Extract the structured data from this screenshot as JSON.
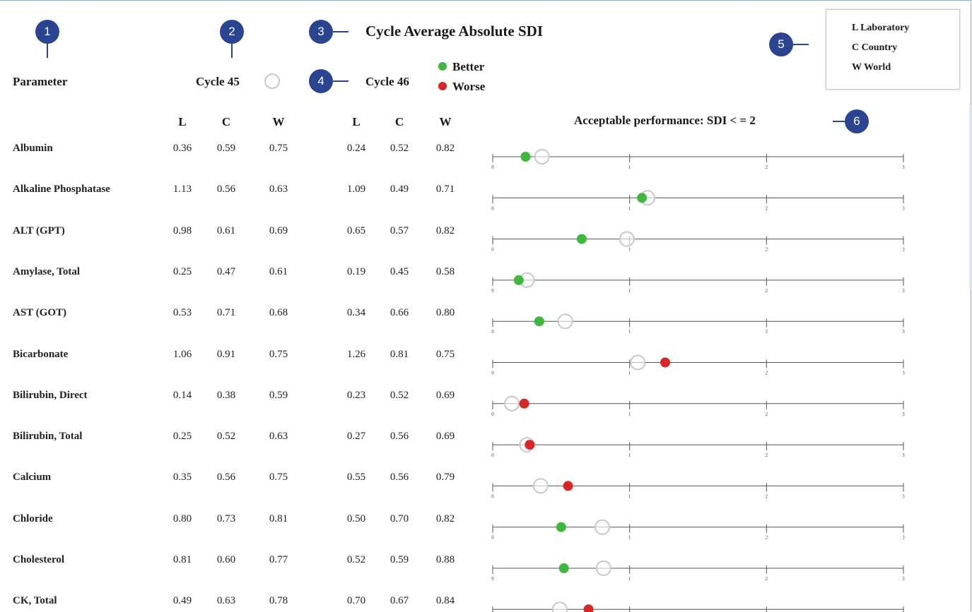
{
  "header": {
    "title": "Cycle Average Absolute SDI",
    "parameter_label": "Parameter",
    "cycle45_label": "Cycle 45",
    "cycle46_label": "Cycle 46",
    "better_label": "Better",
    "worse_label": "Worse",
    "acceptable_label": "Acceptable performance: SDI < = 2"
  },
  "legend_box": {
    "l": "L  Laboratory",
    "c": "C  Country",
    "w": "W World"
  },
  "markers": [
    "1",
    "2",
    "3",
    "4",
    "5",
    "6"
  ],
  "columns": {
    "cycle45": [
      "L",
      "C",
      "W"
    ],
    "cycle46": [
      "L",
      "C",
      "W"
    ]
  },
  "colors": {
    "better": "#3db83d",
    "worse": "#d92626",
    "previous": "#c8c8c8",
    "marker": "#2b4490"
  },
  "chart_data": {
    "type": "scatter",
    "title": "Cycle Average Absolute SDI",
    "xlim": [
      0,
      3
    ],
    "x_ticks": [
      "0",
      "1",
      "2",
      "3"
    ],
    "series": [
      {
        "name": "Cycle 45",
        "style": "hollow"
      },
      {
        "name": "Cycle 46",
        "style": "filled"
      }
    ],
    "rows": [
      {
        "parameter": "Albumin",
        "c45": [
          "0.36",
          "0.59",
          "0.75"
        ],
        "c46": [
          "0.24",
          "0.52",
          "0.82"
        ],
        "status": "Better"
      },
      {
        "parameter": "Alkaline Phosphatase",
        "c45": [
          "1.13",
          "0.56",
          "0.63"
        ],
        "c46": [
          "1.09",
          "0.49",
          "0.71"
        ],
        "status": "Better"
      },
      {
        "parameter": "ALT (GPT)",
        "c45": [
          "0.98",
          "0.61",
          "0.69"
        ],
        "c46": [
          "0.65",
          "0.57",
          "0.82"
        ],
        "status": "Better"
      },
      {
        "parameter": "Amylase, Total",
        "c45": [
          "0.25",
          "0.47",
          "0.61"
        ],
        "c46": [
          "0.19",
          "0.45",
          "0.58"
        ],
        "status": "Better"
      },
      {
        "parameter": "AST (GOT)",
        "c45": [
          "0.53",
          "0.71",
          "0.68"
        ],
        "c46": [
          "0.34",
          "0.66",
          "0.80"
        ],
        "status": "Better"
      },
      {
        "parameter": "Bicarbonate",
        "c45": [
          "1.06",
          "0.91",
          "0.75"
        ],
        "c46": [
          "1.26",
          "0.81",
          "0.75"
        ],
        "status": "Worse"
      },
      {
        "parameter": "Bilirubin, Direct",
        "c45": [
          "0.14",
          "0.38",
          "0.59"
        ],
        "c46": [
          "0.23",
          "0.52",
          "0.69"
        ],
        "status": "Worse"
      },
      {
        "parameter": "Bilirubin, Total",
        "c45": [
          "0.25",
          "0.52",
          "0.63"
        ],
        "c46": [
          "0.27",
          "0.56",
          "0.69"
        ],
        "status": "Worse"
      },
      {
        "parameter": "Calcium",
        "c45": [
          "0.35",
          "0.56",
          "0.75"
        ],
        "c46": [
          "0.55",
          "0.56",
          "0.79"
        ],
        "status": "Worse"
      },
      {
        "parameter": "Chloride",
        "c45": [
          "0.80",
          "0.73",
          "0.81"
        ],
        "c46": [
          "0.50",
          "0.70",
          "0.82"
        ],
        "status": "Better"
      },
      {
        "parameter": "Cholesterol",
        "c45": [
          "0.81",
          "0.60",
          "0.77"
        ],
        "c46": [
          "0.52",
          "0.59",
          "0.88"
        ],
        "status": "Better"
      },
      {
        "parameter": "CK, Total",
        "c45": [
          "0.49",
          "0.63",
          "0.78"
        ],
        "c46": [
          "0.70",
          "0.67",
          "0.84"
        ],
        "status": "Worse"
      }
    ]
  }
}
